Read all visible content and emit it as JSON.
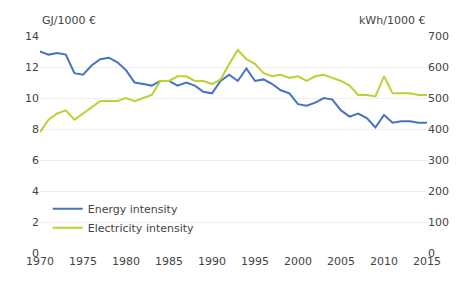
{
  "chart_data": {
    "type": "line",
    "ylabel": "GJ/1000 €",
    "y2label": "kWh/1000 €",
    "x": [
      1970,
      1971,
      1972,
      1973,
      1974,
      1975,
      1976,
      1977,
      1978,
      1979,
      1980,
      1981,
      1982,
      1983,
      1984,
      1985,
      1986,
      1987,
      1988,
      1989,
      1990,
      1991,
      1992,
      1993,
      1994,
      1995,
      1996,
      1997,
      1998,
      1999,
      2000,
      2001,
      2002,
      2003,
      2004,
      2005,
      2006,
      2007,
      2008,
      2009,
      2010,
      2011,
      2012,
      2013,
      2014,
      2015
    ],
    "series": [
      {
        "name": "Energy intensity",
        "color": "#4472c4",
        "axis": "y",
        "values": [
          13.0,
          12.8,
          12.9,
          12.8,
          11.6,
          11.5,
          12.1,
          12.5,
          12.6,
          12.3,
          11.8,
          11.0,
          10.9,
          10.8,
          11.1,
          11.1,
          10.8,
          11.0,
          10.8,
          10.4,
          10.3,
          11.1,
          11.5,
          11.1,
          11.9,
          11.1,
          11.2,
          10.9,
          10.5,
          10.3,
          9.6,
          9.5,
          9.7,
          10.0,
          9.9,
          9.2,
          8.8,
          9.0,
          8.7,
          8.1,
          8.9,
          8.4,
          8.5,
          8.5,
          8.4,
          8.4
        ]
      },
      {
        "name": "Electricity intensity",
        "color": "#bed130",
        "axis": "y2",
        "values": [
          390,
          430,
          450,
          460,
          430,
          450,
          470,
          490,
          490,
          490,
          500,
          490,
          500,
          510,
          555,
          555,
          570,
          570,
          555,
          555,
          545,
          560,
          610,
          655,
          625,
          610,
          580,
          570,
          575,
          565,
          570,
          555,
          570,
          575,
          565,
          555,
          540,
          510,
          510,
          505,
          570,
          515,
          515,
          515,
          510,
          510
        ]
      }
    ],
    "xlim": [
      1970,
      2015
    ],
    "xticks": [
      1970,
      1975,
      1980,
      1985,
      1990,
      1995,
      2000,
      2005,
      2010,
      2015
    ],
    "ylim": [
      0,
      14
    ],
    "yticks": [
      0,
      2,
      4,
      6,
      8,
      10,
      12,
      14
    ],
    "y2lim": [
      0,
      700
    ],
    "y2ticks": [
      0,
      100,
      200,
      300,
      400,
      500,
      600,
      700
    ],
    "grid": true,
    "legend": "lower left"
  }
}
